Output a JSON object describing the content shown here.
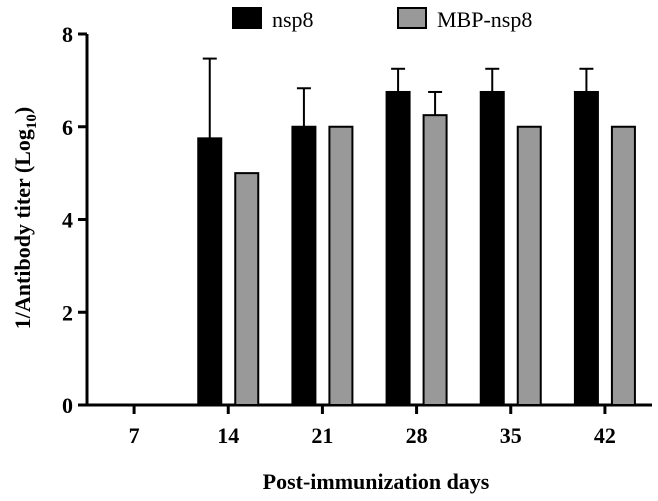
{
  "chart_data": {
    "type": "bar",
    "categories": [
      "7",
      "14",
      "21",
      "28",
      "35",
      "42"
    ],
    "series": [
      {
        "name": "nsp8",
        "color": "#000000",
        "values": [
          null,
          5.75,
          6.0,
          6.75,
          6.75,
          6.75
        ],
        "error": [
          null,
          1.72,
          0.83,
          0.5,
          0.5,
          0.5
        ]
      },
      {
        "name": "MBP-nsp8",
        "color": "#999999",
        "values": [
          null,
          5.0,
          6.0,
          6.25,
          6.0,
          6.0
        ],
        "error": [
          null,
          0,
          0,
          0.5,
          0,
          0
        ]
      }
    ],
    "yticks": [
      "0",
      "2",
      "4",
      "6",
      "8"
    ],
    "ylim": [
      0,
      8
    ],
    "xlabel": "Post-immunization days",
    "ylabel_main": "1/Antibody titer (Log",
    "ylabel_sub": "10",
    "ylabel_end": ")",
    "legend_position": "top"
  }
}
